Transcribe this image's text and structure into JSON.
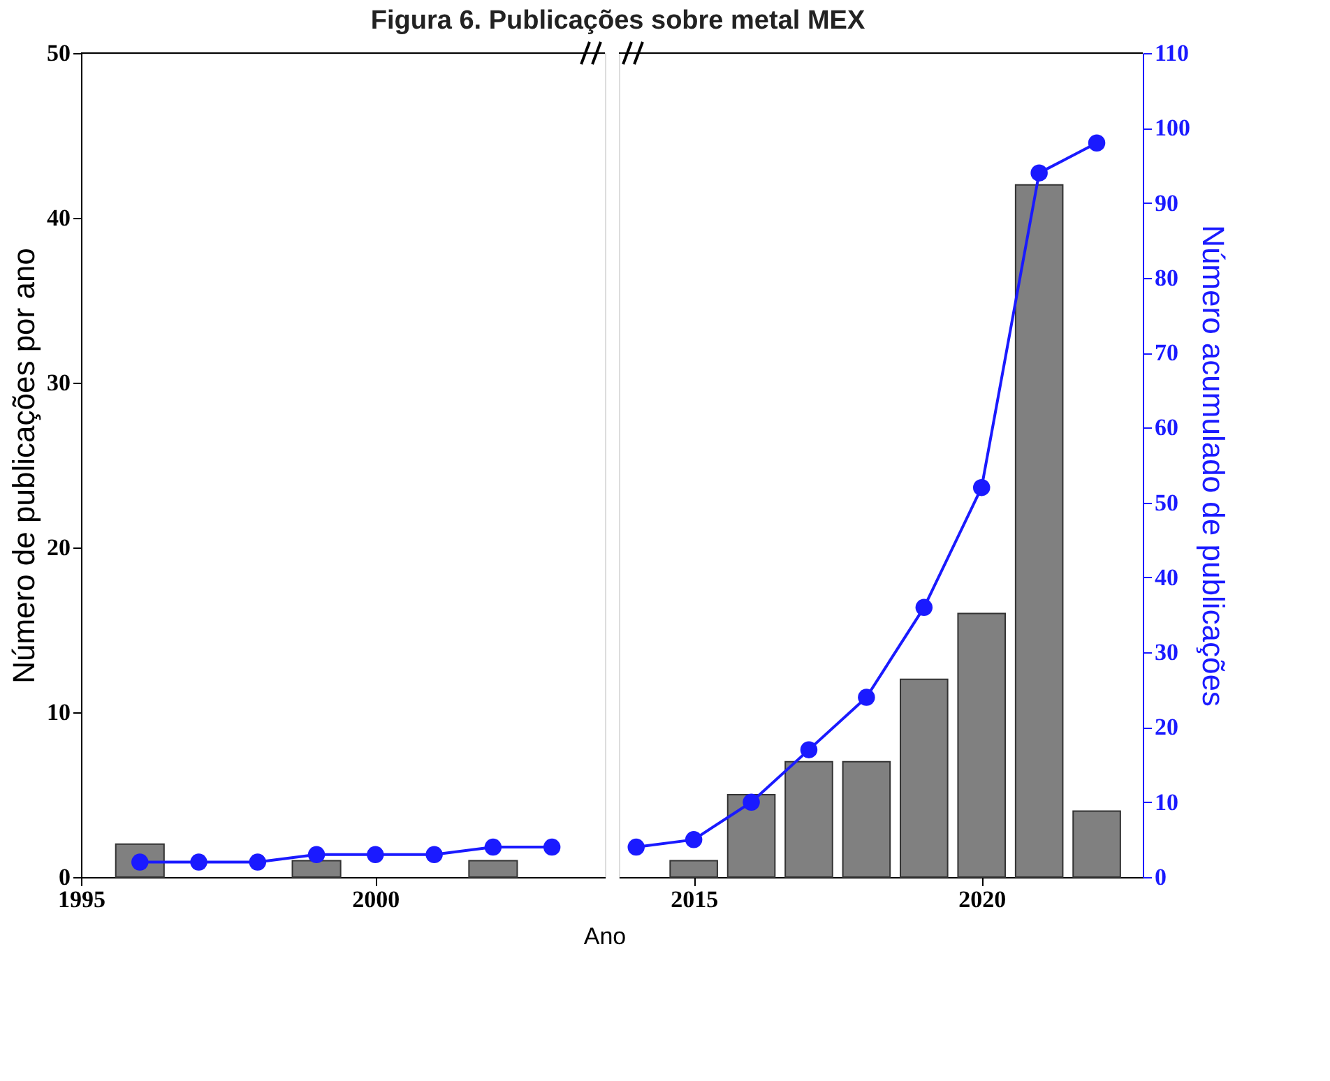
{
  "chart_data": [
    {
      "type": "bar",
      "title": "Figura 6. Publicações sobre metal MEX",
      "xlabel": "Ano",
      "ylabel": "Número de publicações por ano",
      "xlim": [
        1995,
        2003.9
      ],
      "xticks": [
        1995,
        2000
      ],
      "ylim": [
        0,
        50
      ],
      "yticks": [
        0,
        10,
        20,
        30,
        40,
        50
      ],
      "y2lim": [
        0,
        110
      ],
      "marker": "circle",
      "series": [
        {
          "type": "bar",
          "color": "#808080",
          "x": [
            1996,
            1999,
            2002
          ],
          "values": [
            2,
            1,
            1
          ]
        },
        {
          "type": "line",
          "axis": "y2",
          "color": "#1a1aff",
          "x": [
            1996,
            1997,
            1998,
            1999,
            2000,
            2001,
            2002,
            2003
          ],
          "values": [
            2,
            2,
            2,
            3,
            3,
            3,
            4,
            4
          ]
        }
      ]
    },
    {
      "type": "bar",
      "y2label": "Número acumulado de publicações",
      "xlim": [
        2013.7,
        2022.8
      ],
      "xticks": [
        2015,
        2020
      ],
      "ylim": [
        0,
        50
      ],
      "y2lim": [
        0,
        110
      ],
      "y2ticks": [
        0,
        10,
        20,
        30,
        40,
        50,
        60,
        70,
        80,
        90,
        100,
        110
      ],
      "marker": "circle",
      "series": [
        {
          "type": "bar",
          "color": "#808080",
          "x": [
            2015,
            2016,
            2017,
            2018,
            2019,
            2020,
            2021,
            2022
          ],
          "values": [
            1,
            5,
            7,
            7,
            12,
            16,
            42,
            4
          ]
        },
        {
          "type": "line",
          "axis": "y2",
          "color": "#1a1aff",
          "x": [
            2014,
            2015,
            2016,
            2017,
            2018,
            2019,
            2020,
            2021,
            2022
          ],
          "values": [
            4,
            5,
            10,
            17,
            24,
            36,
            52,
            94,
            98
          ]
        }
      ]
    }
  ]
}
